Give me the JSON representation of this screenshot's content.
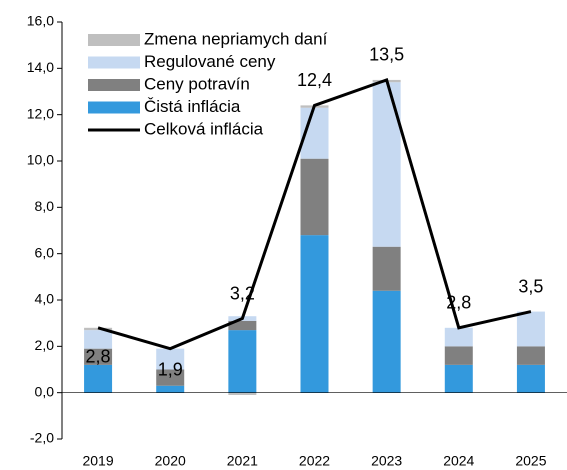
{
  "chart_data": {
    "type": "bar",
    "categories": [
      "2019",
      "2020",
      "2021",
      "2022",
      "2023",
      "2024",
      "2025"
    ],
    "series": [
      {
        "name": "Čistá inflácia",
        "color": "#3399dd",
        "values": [
          1.2,
          0.3,
          2.7,
          6.8,
          4.4,
          1.2,
          1.2
        ]
      },
      {
        "name": "Ceny potravín",
        "color": "#808080",
        "values": [
          0.7,
          0.7,
          0.4,
          3.3,
          1.9,
          0.8,
          0.8
        ]
      },
      {
        "name": "Regulované ceny",
        "color": "#c6d9f1",
        "values": [
          0.8,
          0.9,
          0.2,
          2.2,
          7.1,
          0.8,
          1.5
        ]
      },
      {
        "name": "Zmena nepriamych daní",
        "color": "#bfbfbf",
        "values": [
          0.1,
          0,
          -0.1,
          0.1,
          0.1,
          0,
          0
        ]
      },
      {
        "name": "Celková inflácia",
        "color": "#000000",
        "type": "line",
        "values": [
          2.8,
          1.9,
          3.2,
          12.4,
          13.5,
          2.8,
          3.5
        ],
        "value_labels": [
          "2,8",
          "1,9",
          "3,2",
          "12,4",
          "13,5",
          "2,8",
          "3,5"
        ]
      }
    ],
    "ylim": [
      -2,
      16
    ],
    "yticks": [
      {
        "value": -2,
        "label": "-2,0"
      },
      {
        "value": 0,
        "label": "0,0"
      },
      {
        "value": 2,
        "label": "2,0"
      },
      {
        "value": 4,
        "label": "4,0"
      },
      {
        "value": 6,
        "label": "6,0"
      },
      {
        "value": 8,
        "label": "8,0"
      },
      {
        "value": 10,
        "label": "10,0"
      },
      {
        "value": 12,
        "label": "12,0"
      },
      {
        "value": 14,
        "label": "14,0"
      },
      {
        "value": 16,
        "label": "16,0"
      }
    ],
    "legend": "upper left"
  }
}
